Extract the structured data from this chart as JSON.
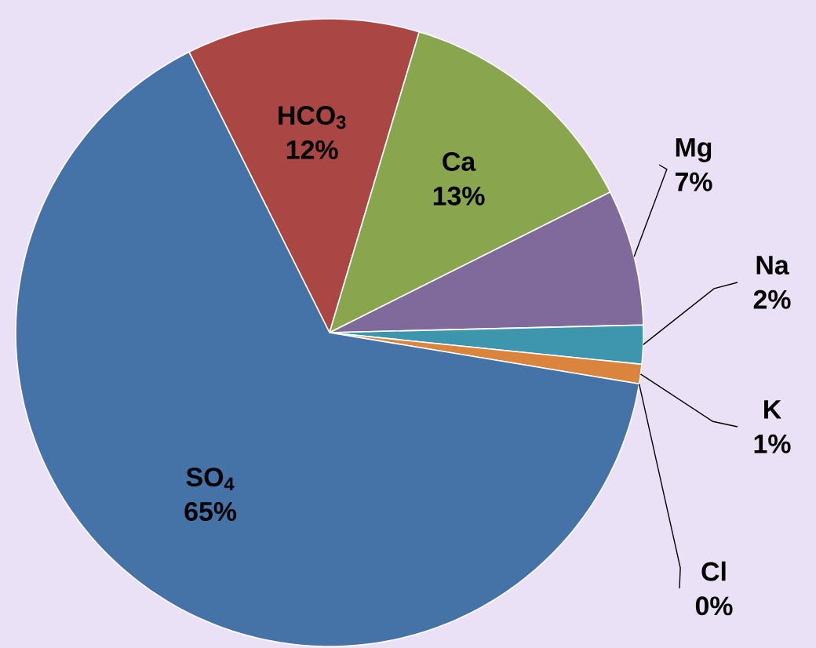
{
  "chart_data": {
    "type": "pie",
    "categories": [
      "HCO$_{3}$",
      "Ca",
      "Mg",
      "Na",
      "K",
      "Cl",
      "SO$_{4}$"
    ],
    "values": [
      12,
      13,
      7,
      2,
      1,
      0,
      65
    ],
    "colors": [
      "#aa4643",
      "#89a54e",
      "#80699b",
      "#3d96ae",
      "#db843d",
      "#92a8cd",
      "#4572a7"
    ],
    "value_labels": [
      "12%",
      "13%",
      "7%",
      "2%",
      "1%",
      "0%",
      "65%"
    ]
  }
}
